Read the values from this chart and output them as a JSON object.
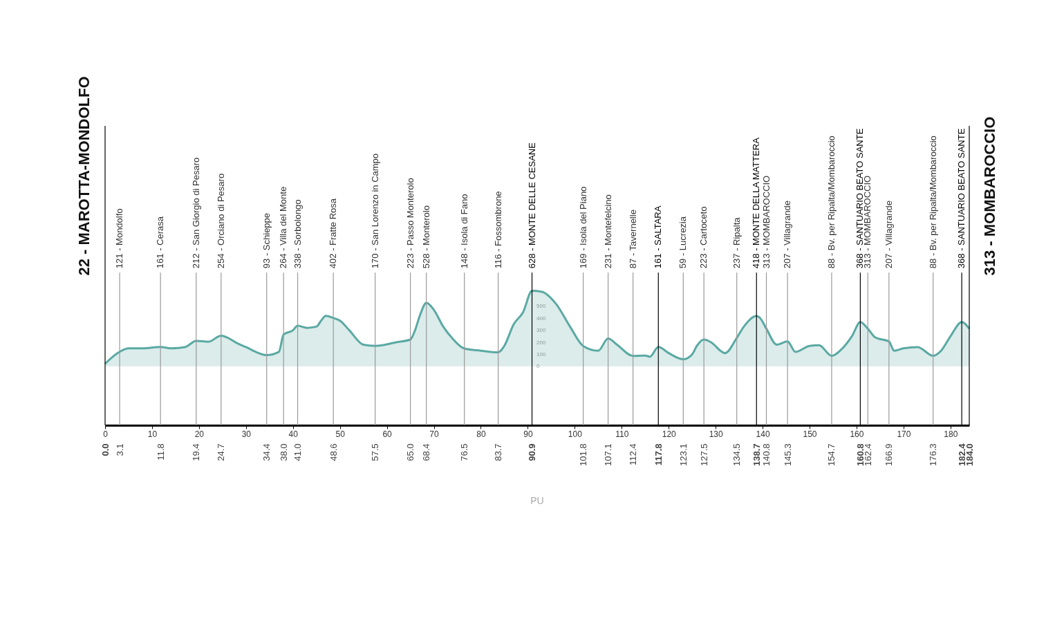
{
  "chart_data": {
    "type": "area",
    "x": [
      0,
      3.1,
      5,
      8,
      11.8,
      14,
      17,
      19.4,
      22,
      24.7,
      26,
      28,
      30,
      34.4,
      37,
      38,
      40,
      41,
      43,
      45,
      46,
      47,
      48.6,
      50,
      52,
      55,
      57.5,
      62,
      65,
      66,
      67,
      68.4,
      70,
      72,
      74,
      76.5,
      80,
      83.7,
      85,
      87,
      89,
      90.9,
      93,
      96,
      99,
      101.8,
      105,
      107.1,
      109,
      112.4,
      115,
      116,
      117.8,
      120,
      123.1,
      125,
      126,
      127.5,
      129,
      132,
      134.5,
      136,
      138.7,
      139.5,
      140.8,
      143,
      145.3,
      147,
      150,
      152,
      154.7,
      157,
      159,
      160.8,
      162.4,
      164,
      166.9,
      168,
      170,
      173,
      176.3,
      178,
      180,
      182.4,
      184
    ],
    "series": [
      {
        "color": "#5aa9a3",
        "values": [
          22,
          121,
          150,
          150,
          161,
          150,
          160,
          212,
          205,
          254,
          240,
          195,
          160,
          93,
          120,
          264,
          300,
          338,
          320,
          330,
          380,
          420,
          402,
          380,
          300,
          180,
          170,
          200,
          223,
          300,
          420,
          528,
          470,
          330,
          230,
          148,
          130,
          116,
          170,
          350,
          450,
          628,
          620,
          520,
          330,
          169,
          130,
          231,
          180,
          87,
          90,
          80,
          161,
          110,
          59,
          100,
          170,
          223,
          200,
          110,
          237,
          330,
          418,
          400,
          313,
          180,
          207,
          120,
          170,
          175,
          88,
          150,
          250,
          368,
          313,
          240,
          207,
          130,
          150,
          160,
          88,
          130,
          250,
          368,
          313
        ]
      }
    ],
    "xlim": [
      0,
      184
    ],
    "xticks": [
      0,
      10,
      20,
      30,
      40,
      50,
      60,
      70,
      80,
      90,
      100,
      110,
      120,
      130,
      140,
      150,
      160,
      170,
      180
    ],
    "x2lim": [
      0,
      184
    ],
    "x2ticks": [
      {
        "value": 0,
        "label": "0.0"
      },
      3.1,
      11.8,
      19.4,
      24.7,
      34.4,
      {
        "value": 38.0,
        "label": "38.0"
      },
      {
        "value": 41.0,
        "label": "41.0"
      },
      48.6,
      57.5,
      {
        "value": 65.0,
        "label": "65.0"
      },
      68.4,
      76.5,
      83.7,
      90.9,
      101.8,
      107.1,
      112.4,
      117.8,
      123.1,
      127.5,
      134.5,
      138.7,
      140.8,
      145.3,
      154.7,
      160.8,
      162.4,
      166.9,
      176.3,
      182.4,
      {
        "value": 184.0,
        "label": "184.0"
      }
    ],
    "ylim": [
      -490,
      2000
    ],
    "yticks": [
      0,
      100,
      200,
      300,
      400,
      500
    ],
    "ref_lines": [
      {
        "axis": "x",
        "value": 0,
        "color": "#000000"
      },
      {
        "axis": "x",
        "value": 3.1,
        "label": "121 - Mondolfo",
        "color": "#999999"
      },
      {
        "axis": "x",
        "value": 11.8,
        "label": "161 - Cerasa",
        "color": "#999999"
      },
      {
        "axis": "x",
        "value": 19.4,
        "label": "212 - San Giorgio di Pesaro",
        "color": "#999999"
      },
      {
        "axis": "x",
        "value": 24.7,
        "label": "254 - Orciano di Pesaro",
        "color": "#999999"
      },
      {
        "axis": "x",
        "value": 34.4,
        "label": "93 - Schieppe",
        "color": "#999999"
      },
      {
        "axis": "x",
        "value": 38.0,
        "label": "264 - Villa del Monte",
        "color": "#999999"
      },
      {
        "axis": "x",
        "value": 41.0,
        "label": "338 - Sorbolongo",
        "color": "#999999"
      },
      {
        "axis": "x",
        "value": 48.6,
        "label": "402 - Fratte Rosa",
        "color": "#999999"
      },
      {
        "axis": "x",
        "value": 57.5,
        "label": "170 - San Lorenzo in Campo",
        "color": "#999999"
      },
      {
        "axis": "x",
        "value": 65.0,
        "label": "223 - Passo Monterolo",
        "color": "#999999"
      },
      {
        "axis": "x",
        "value": 68.4,
        "label": "528 - Monterolo",
        "color": "#999999"
      },
      {
        "axis": "x",
        "value": 76.5,
        "label": "148 - Isola di Fano",
        "color": "#999999"
      },
      {
        "axis": "x",
        "value": 83.7,
        "label": "116 - Fossombrone",
        "color": "#999999"
      },
      {
        "axis": "x",
        "value": 90.9,
        "label": "628 - MONTE DELLE CESANE",
        "color": "#000000"
      },
      {
        "axis": "x",
        "value": 101.8,
        "label": "169 - Isola del Piano",
        "color": "#999999"
      },
      {
        "axis": "x",
        "value": 107.1,
        "label": "231 - Montefelcino",
        "color": "#999999"
      },
      {
        "axis": "x",
        "value": 112.4,
        "label": "87 - Tavernelle",
        "color": "#999999"
      },
      {
        "axis": "x",
        "value": 117.8,
        "label": "161 - SALTARA",
        "color": "#000000"
      },
      {
        "axis": "x",
        "value": 123.1,
        "label": "59 - Lucrezia",
        "color": "#999999"
      },
      {
        "axis": "x",
        "value": 127.5,
        "label": "223 - Cartoceto",
        "color": "#999999"
      },
      {
        "axis": "x",
        "value": 134.5,
        "label": "237 - Ripalta",
        "color": "#999999"
      },
      {
        "axis": "x",
        "value": 138.7,
        "label": "418 - MONTE DELLA MATTERA",
        "color": "#000000"
      },
      {
        "axis": "x",
        "value": 140.8,
        "label": "313 - MOMBAROCCIO",
        "color": "#999999"
      },
      {
        "axis": "x",
        "value": 145.3,
        "label": "207 - Villagrande",
        "color": "#999999"
      },
      {
        "axis": "x",
        "value": 154.7,
        "label": "88 - Bv. per Ripalta/Mombaroccio",
        "color": "#999999"
      },
      {
        "axis": "x",
        "value": 160.8,
        "label": "368 - SANTUARIO BEATO SANTE",
        "color": "#000000"
      },
      {
        "axis": "x",
        "value": 162.4,
        "label": "313 - MOMBAROCCIO",
        "color": "#999999"
      },
      {
        "axis": "x",
        "value": 166.9,
        "label": "207 - Villagrande",
        "color": "#999999"
      },
      {
        "axis": "x",
        "value": 176.3,
        "label": "88 - Bv. per Ripalta/Mombaroccio",
        "color": "#999999"
      },
      {
        "axis": "x",
        "value": 182.4,
        "label": "368 - SANTUARIO BEATO SANTE",
        "color": "#000000"
      },
      {
        "axis": "x",
        "value": 184.0,
        "color": "#000000"
      }
    ],
    "annotations": [
      "22 - MAROTTA-MONDOLFO",
      "313 - MOMBAROCCIO",
      "PU"
    ]
  }
}
